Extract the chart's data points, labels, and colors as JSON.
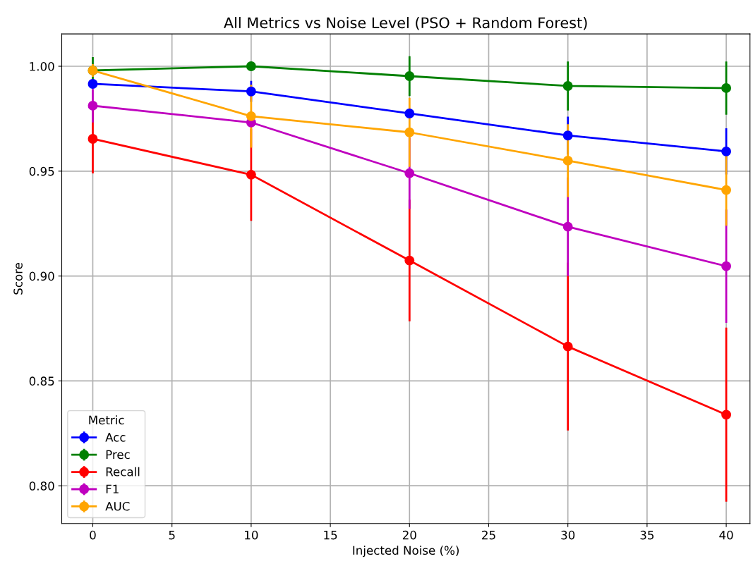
{
  "chart_data": {
    "type": "line",
    "title": "All Metrics vs Noise Level (PSO + Random Forest)",
    "xlabel": "Injected Noise (%)",
    "ylabel": "Score",
    "x": [
      0,
      10,
      20,
      30,
      40
    ],
    "series": [
      {
        "name": "Acc",
        "color": "#0000ff",
        "values": [
          0.9916,
          0.988,
          0.9775,
          0.967,
          0.9594
        ],
        "errors": [
          null,
          0.005,
          null,
          0.009,
          0.011
        ]
      },
      {
        "name": "Prec",
        "color": "#008000",
        "values": [
          0.998,
          1.0,
          0.9953,
          0.9906,
          0.9896
        ],
        "errors": [
          0.0064,
          0,
          0.0095,
          0.0117,
          0.0127
        ]
      },
      {
        "name": "Recall",
        "color": "#ff0000",
        "values": [
          0.9654,
          0.9483,
          0.9074,
          0.8664,
          0.8339
        ],
        "errors": [
          0.0165,
          0.022,
          0.029,
          0.04,
          0.0415
        ]
      },
      {
        "name": "F1",
        "color": "#bf00bf",
        "values": [
          0.9812,
          0.9732,
          0.949,
          0.9235,
          0.9047
        ],
        "errors": [
          0.008,
          null,
          0.017,
          0.0235,
          0.027
        ]
      },
      {
        "name": "AUC",
        "color": "#ffa500",
        "values": [
          0.998,
          0.9762,
          0.9685,
          0.955,
          0.941
        ],
        "errors": [
          0.003,
          0.015,
          0.0165,
          0.0174,
          0.017
        ]
      }
    ],
    "xlim": [
      -1.96,
      41.5
    ],
    "ylim": [
      0.782,
      1.0154
    ],
    "xticks": [
      0,
      5,
      10,
      15,
      20,
      25,
      30,
      35,
      40
    ],
    "yticks": [
      {
        "value": 0.8,
        "label": "0.80"
      },
      {
        "value": 0.85,
        "label": "0.85"
      },
      {
        "value": 0.9,
        "label": "0.90"
      },
      {
        "value": 0.95,
        "label": "0.95"
      },
      {
        "value": 1.0,
        "label": "1.00"
      }
    ],
    "grid": true,
    "legend": "lower left",
    "legend_title": "Metric",
    "marker": "circle",
    "line_style": "solid"
  }
}
